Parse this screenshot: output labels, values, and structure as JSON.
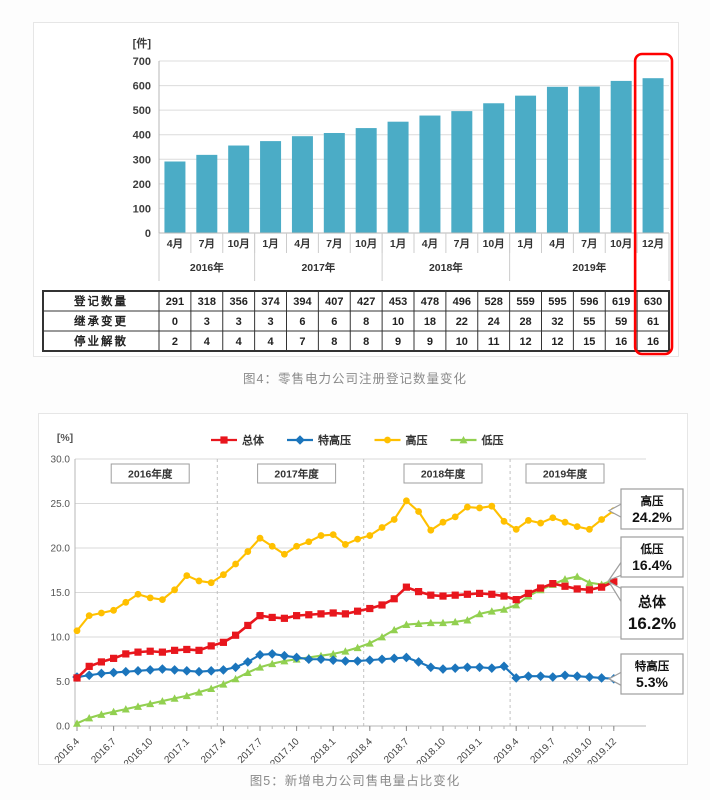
{
  "captions": {
    "figure4": "图4：零售电力公司注册登记数量变化",
    "figure5": "图5：新增电力公司售电量占比变化"
  },
  "chart_data": [
    {
      "id": "figure4",
      "type": "bar",
      "title": "图4：零售电力公司注册登记数量变化",
      "unit": "[件]",
      "bar_color": "#4BACC6",
      "ylim": [
        0,
        700
      ],
      "y_ticks": [
        0,
        100,
        200,
        300,
        400,
        500,
        600,
        700
      ],
      "categories": [
        "4月",
        "7月",
        "10月",
        "1月",
        "4月",
        "7月",
        "10月",
        "1月",
        "4月",
        "7月",
        "10月",
        "1月",
        "4月",
        "7月",
        "10月",
        "12月"
      ],
      "year_groups": [
        {
          "label": "2016年",
          "span": 3
        },
        {
          "label": "2017年",
          "span": 4
        },
        {
          "label": "2018年",
          "span": 4
        },
        {
          "label": "2019年",
          "span": 5
        }
      ],
      "values": [
        291,
        318,
        356,
        374,
        394,
        407,
        427,
        453,
        478,
        496,
        528,
        559,
        595,
        596,
        619,
        630
      ],
      "table_rows": [
        {
          "label": "登记数量",
          "values": [
            291,
            318,
            356,
            374,
            394,
            407,
            427,
            453,
            478,
            496,
            528,
            559,
            595,
            596,
            619,
            630
          ]
        },
        {
          "label": "继承变更",
          "values": [
            0,
            3,
            3,
            3,
            6,
            6,
            8,
            10,
            18,
            22,
            24,
            28,
            32,
            55,
            59,
            61
          ]
        },
        {
          "label": "停业解散",
          "values": [
            2,
            4,
            4,
            4,
            7,
            8,
            8,
            9,
            9,
            10,
            11,
            12,
            12,
            15,
            16,
            16
          ]
        }
      ],
      "highlight": {
        "column_index": 15,
        "column_label": "12月",
        "color": "#FF0000"
      }
    },
    {
      "id": "figure5",
      "type": "line",
      "title": "图5：新增电力公司售电量占比变化",
      "unit": "[%]",
      "ylim": [
        0,
        30
      ],
      "y_ticks": [
        0,
        5,
        10,
        15,
        20,
        25,
        30
      ],
      "n_points": 45,
      "x_start": "2016.4",
      "x_end": "2019.12",
      "x_tick_labels": [
        "2016.4",
        "2016.7",
        "2016.10",
        "2017.1",
        "2017.4",
        "2017.7",
        "2017.10",
        "2018.1",
        "2018.4",
        "2018.7",
        "2018.10",
        "2019.1",
        "2019.4",
        "2019.7",
        "2019.10",
        "2019.12"
      ],
      "x_tick_indices": [
        0,
        3,
        6,
        9,
        12,
        15,
        18,
        21,
        24,
        27,
        30,
        33,
        36,
        39,
        42,
        44
      ],
      "fiscal_year_boxes": [
        {
          "label": "2016年度",
          "center_index": 6
        },
        {
          "label": "2017年度",
          "center_index": 18
        },
        {
          "label": "2018年度",
          "center_index": 30
        },
        {
          "label": "2019年度",
          "center_index": 40
        }
      ],
      "fiscal_year_divider_indices": [
        12,
        24,
        36
      ],
      "series": [
        {
          "name": "总体",
          "key": "total",
          "color": "#E8161D",
          "marker": "square",
          "values": [
            5.4,
            6.7,
            7.2,
            7.6,
            8.1,
            8.3,
            8.4,
            8.3,
            8.5,
            8.6,
            8.5,
            9.0,
            9.4,
            10.2,
            11.3,
            12.4,
            12.2,
            12.1,
            12.4,
            12.5,
            12.6,
            12.7,
            12.6,
            12.9,
            13.2,
            13.6,
            14.3,
            15.6,
            15.1,
            14.7,
            14.6,
            14.7,
            14.8,
            14.9,
            14.8,
            14.6,
            14.2,
            14.9,
            15.5,
            16.0,
            15.7,
            15.4,
            15.3,
            15.6,
            16.2
          ]
        },
        {
          "name": "特高压",
          "key": "uhv",
          "color": "#1B75BC",
          "marker": "diamond",
          "values": [
            5.5,
            5.7,
            5.9,
            6.0,
            6.1,
            6.2,
            6.3,
            6.4,
            6.3,
            6.2,
            6.1,
            6.2,
            6.3,
            6.6,
            7.2,
            8.0,
            8.1,
            7.9,
            7.7,
            7.5,
            7.5,
            7.4,
            7.3,
            7.3,
            7.4,
            7.5,
            7.6,
            7.7,
            7.2,
            6.6,
            6.4,
            6.5,
            6.6,
            6.6,
            6.5,
            6.7,
            5.4,
            5.6,
            5.6,
            5.5,
            5.7,
            5.6,
            5.5,
            5.4,
            5.3
          ]
        },
        {
          "name": "高压",
          "key": "hv",
          "color": "#FFC000",
          "marker": "circle",
          "values": [
            10.7,
            12.4,
            12.7,
            13.0,
            13.9,
            14.8,
            14.4,
            14.2,
            15.3,
            16.9,
            16.3,
            16.1,
            17.0,
            18.2,
            19.6,
            21.1,
            20.2,
            19.3,
            20.2,
            20.7,
            21.4,
            21.5,
            20.4,
            21.0,
            21.4,
            22.3,
            23.2,
            25.3,
            24.1,
            22.0,
            22.9,
            23.5,
            24.6,
            24.5,
            24.7,
            23.0,
            22.1,
            23.1,
            22.8,
            23.4,
            22.9,
            22.4,
            22.1,
            23.2,
            24.2
          ]
        },
        {
          "name": "低压",
          "key": "lv",
          "color": "#92D050",
          "marker": "triangle",
          "values": [
            0.3,
            0.9,
            1.3,
            1.6,
            1.9,
            2.2,
            2.5,
            2.8,
            3.1,
            3.4,
            3.8,
            4.2,
            4.7,
            5.3,
            6.0,
            6.6,
            7.0,
            7.3,
            7.5,
            7.7,
            7.9,
            8.1,
            8.4,
            8.8,
            9.3,
            10.0,
            10.8,
            11.4,
            11.5,
            11.6,
            11.6,
            11.7,
            11.9,
            12.6,
            12.9,
            13.1,
            13.6,
            14.6,
            15.3,
            15.9,
            16.5,
            16.8,
            16.1,
            15.9,
            16.4
          ]
        }
      ],
      "legend": [
        "总体",
        "特高压",
        "高压",
        "低压"
      ],
      "legend_position": "top",
      "callouts": [
        {
          "label": "高压",
          "value": "24.2%",
          "emphasis": false
        },
        {
          "label": "低压",
          "value": "16.4%",
          "emphasis": false
        },
        {
          "label": "总体",
          "value": "16.2%",
          "emphasis": true
        },
        {
          "label": "特高压",
          "value": "5.3%",
          "emphasis": false
        }
      ]
    }
  ]
}
